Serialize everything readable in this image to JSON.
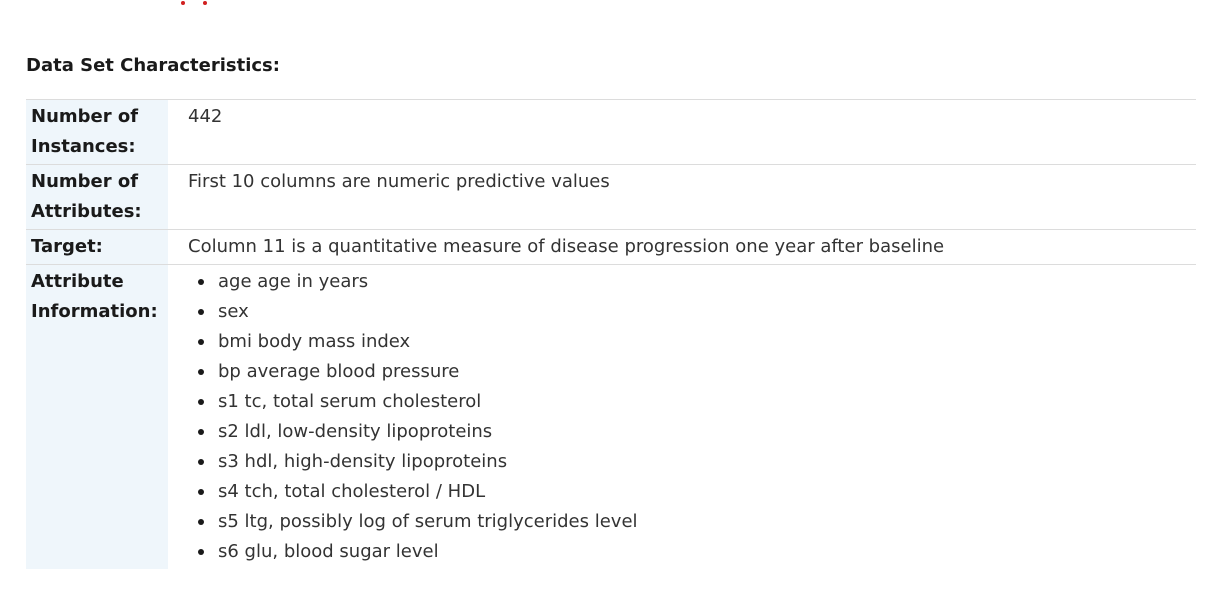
{
  "section": {
    "title": "Data Set Characteristics:"
  },
  "fields": {
    "instances": {
      "label": "Number of Instances:",
      "value": "442"
    },
    "attributes": {
      "label": "Number of Attributes:",
      "value": "First 10 columns are numeric predictive values"
    },
    "target": {
      "label": "Target:",
      "value": "Column 11 is a quantitative measure of disease progression one year after baseline"
    },
    "attribute_information": {
      "label": "Attribute Information:",
      "items": [
        "age age in years",
        "sex",
        "bmi body mass index",
        "bp average blood pressure",
        "s1 tc, total serum cholesterol",
        "s2 ldl, low-density lipoproteins",
        "s3 hdl, high-density lipoproteins",
        "s4 tch, total cholesterol / HDL",
        "s5 ltg, possibly log of serum triglycerides level",
        "s6 glu, blood sugar level"
      ]
    }
  },
  "colors": {
    "label_background": "#eff6fb",
    "row_border": "#dcdcdc",
    "text": "#333333"
  }
}
